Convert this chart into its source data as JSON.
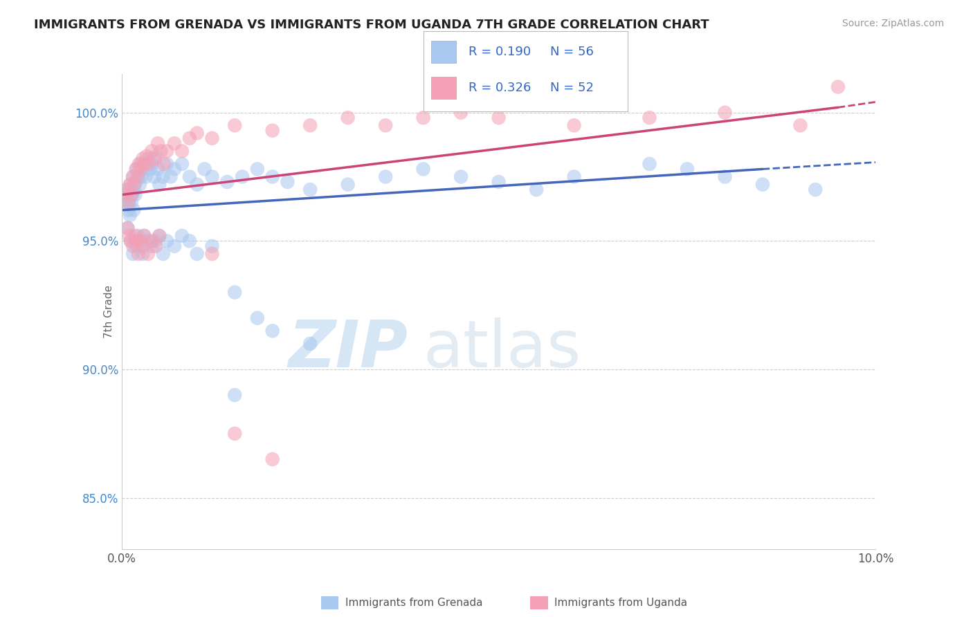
{
  "title": "IMMIGRANTS FROM GRENADA VS IMMIGRANTS FROM UGANDA 7TH GRADE CORRELATION CHART",
  "source": "Source: ZipAtlas.com",
  "ylabel": "7th Grade",
  "xlim": [
    0.0,
    10.0
  ],
  "ylim": [
    83.0,
    101.5
  ],
  "yticks": [
    85.0,
    90.0,
    95.0,
    100.0
  ],
  "ytick_labels": [
    "85.0%",
    "90.0%",
    "95.0%",
    "100.0%"
  ],
  "legend_r1": "R = 0.190",
  "legend_n1": "N = 56",
  "legend_r2": "R = 0.326",
  "legend_n2": "N = 52",
  "color_blue": "#A8C8F0",
  "color_pink": "#F4A0B5",
  "trendline_blue": "#4466BB",
  "trendline_pink": "#CC4477",
  "background": "#ffffff",
  "grenada_x": [
    0.05,
    0.07,
    0.08,
    0.09,
    0.1,
    0.11,
    0.12,
    0.13,
    0.14,
    0.15,
    0.16,
    0.17,
    0.18,
    0.19,
    0.2,
    0.22,
    0.24,
    0.25,
    0.26,
    0.28,
    0.3,
    0.32,
    0.35,
    0.38,
    0.4,
    0.43,
    0.45,
    0.48,
    0.5,
    0.55,
    0.6,
    0.65,
    0.7,
    0.8,
    0.9,
    1.0,
    1.1,
    1.2,
    1.4,
    1.6,
    1.8,
    2.0,
    2.2,
    2.5,
    3.0,
    3.5,
    4.0,
    4.5,
    5.0,
    5.5,
    6.0,
    7.0,
    7.5,
    8.0,
    8.5,
    9.2
  ],
  "grenada_y": [
    96.5,
    96.8,
    97.0,
    96.2,
    96.5,
    96.0,
    97.2,
    96.5,
    96.8,
    97.5,
    96.2,
    97.0,
    96.8,
    97.3,
    97.8,
    97.5,
    97.2,
    98.0,
    97.5,
    97.8,
    98.0,
    97.5,
    98.2,
    97.8,
    98.0,
    97.5,
    98.3,
    97.8,
    97.2,
    97.5,
    98.0,
    97.5,
    97.8,
    98.0,
    97.5,
    97.2,
    97.8,
    97.5,
    97.3,
    97.5,
    97.8,
    97.5,
    97.3,
    97.0,
    97.2,
    97.5,
    97.8,
    97.5,
    97.3,
    97.0,
    97.5,
    98.0,
    97.8,
    97.5,
    97.2,
    97.0
  ],
  "grenada_x_outliers": [
    0.08,
    0.12,
    0.15,
    0.18,
    0.2,
    0.22,
    0.25,
    0.28,
    0.3,
    0.35,
    0.4,
    0.45,
    0.5,
    0.55,
    0.6,
    0.7,
    0.8,
    0.9,
    1.0,
    1.2,
    1.5,
    1.8,
    2.0,
    2.5,
    1.5
  ],
  "grenada_y_outliers": [
    95.5,
    95.0,
    94.5,
    95.0,
    94.8,
    95.2,
    95.0,
    94.5,
    95.2,
    95.0,
    94.8,
    95.0,
    95.2,
    94.5,
    95.0,
    94.8,
    95.2,
    95.0,
    94.5,
    94.8,
    93.0,
    92.0,
    91.5,
    91.0,
    89.0
  ],
  "uganda_x": [
    0.05,
    0.07,
    0.09,
    0.11,
    0.13,
    0.15,
    0.17,
    0.19,
    0.21,
    0.23,
    0.25,
    0.28,
    0.3,
    0.33,
    0.36,
    0.4,
    0.44,
    0.48,
    0.52,
    0.56,
    0.6,
    0.7,
    0.8,
    0.9,
    1.0,
    1.2,
    1.5,
    2.0,
    2.5,
    3.0,
    3.5,
    4.0,
    4.5,
    5.0,
    6.0,
    7.0,
    8.0,
    9.0,
    9.5
  ],
  "uganda_y": [
    96.8,
    97.0,
    96.5,
    97.2,
    96.8,
    97.5,
    97.2,
    97.8,
    97.5,
    98.0,
    97.8,
    98.2,
    98.0,
    98.3,
    98.0,
    98.5,
    98.2,
    98.8,
    98.5,
    98.0,
    98.5,
    98.8,
    98.5,
    99.0,
    99.2,
    99.0,
    99.5,
    99.3,
    99.5,
    99.8,
    99.5,
    99.8,
    100.0,
    99.8,
    99.5,
    99.8,
    100.0,
    99.5,
    101.0
  ],
  "uganda_x_outliers": [
    0.08,
    0.1,
    0.12,
    0.15,
    0.18,
    0.2,
    0.22,
    0.25,
    0.28,
    0.3,
    0.35,
    0.4,
    0.45,
    0.5,
    1.2,
    1.5,
    2.0
  ],
  "uganda_y_outliers": [
    95.5,
    95.2,
    95.0,
    94.8,
    95.2,
    95.0,
    94.5,
    95.0,
    94.8,
    95.2,
    94.5,
    95.0,
    94.8,
    95.2,
    94.5,
    87.5,
    86.5
  ],
  "trend_blue_x0": 0.0,
  "trend_blue_y0": 96.2,
  "trend_blue_x1": 8.5,
  "trend_blue_y1": 97.8,
  "trend_blue_dash_x1": 10.2,
  "trend_blue_dash_y1": 98.1,
  "trend_pink_x0": 0.0,
  "trend_pink_y0": 96.8,
  "trend_pink_x1": 9.5,
  "trend_pink_y1": 100.2,
  "trend_pink_dash_x1": 10.2,
  "trend_pink_dash_y1": 100.5
}
